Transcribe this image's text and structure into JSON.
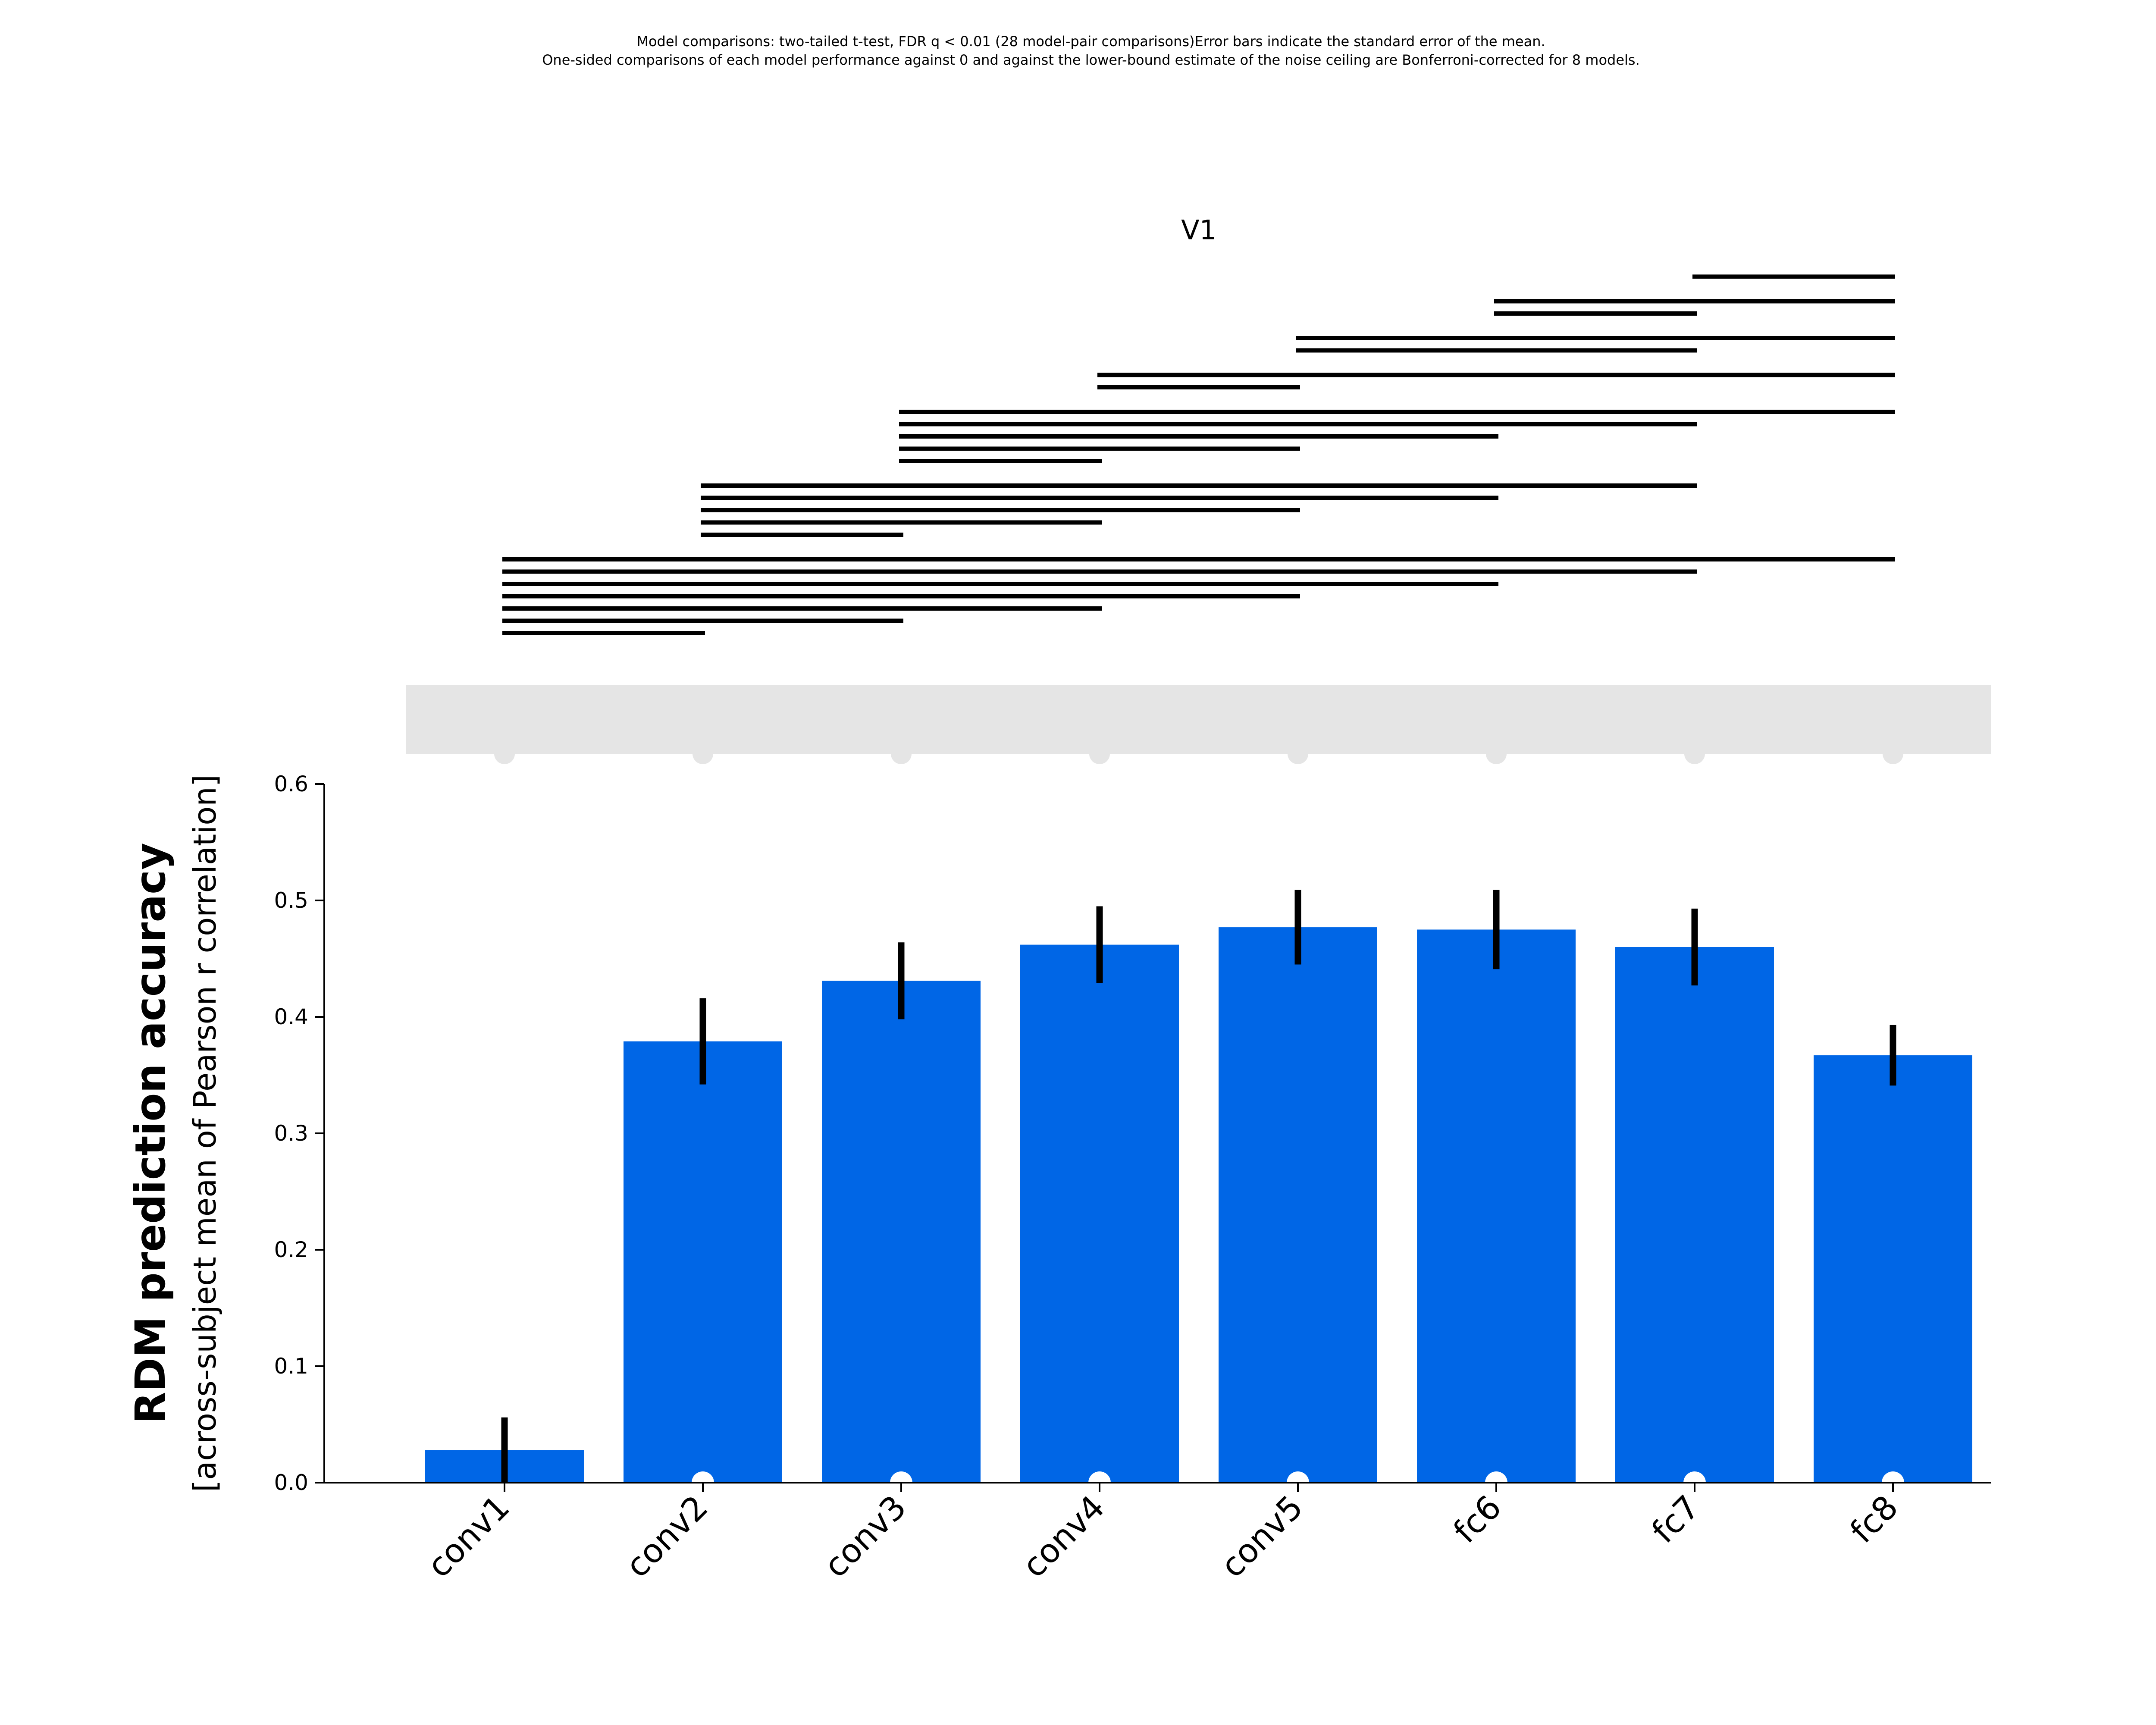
{
  "chart_data": {
    "type": "bar",
    "notes": [
      "Model comparisons: two-tailed t-test, FDR q < 0.01 (28 model-pair comparisons)Error bars indicate the standard error of the mean.",
      "One-sided comparisons of each model performance against 0 and against the lower-bound estimate of the noise ceiling are Bonferroni-corrected for 8 models."
    ],
    "title": "V1",
    "ylabel": "RDM prediction accuracy",
    "ylabel_sub": "[across-subject mean of Pearson r correlation]",
    "categories": [
      "conv1",
      "conv2",
      "conv3",
      "conv4",
      "conv5",
      "fc6",
      "fc7",
      "fc8"
    ],
    "values": [
      0.028,
      0.379,
      0.431,
      0.462,
      0.477,
      0.475,
      0.46,
      0.367
    ],
    "errors": [
      0.028,
      0.037,
      0.033,
      0.033,
      0.032,
      0.034,
      0.033,
      0.026
    ],
    "ylim": [
      0,
      0.6
    ],
    "yticks": [
      "0.0",
      "0.1",
      "0.2",
      "0.3",
      "0.4",
      "0.5",
      "0.6"
    ],
    "grid": false,
    "bar_color": "#0066e6",
    "noise_ceiling_color": "#e5e5e5",
    "significant_vs_zero": [
      false,
      true,
      true,
      true,
      true,
      true,
      true,
      true
    ],
    "significant_vs_noise_ceiling": [
      true,
      true,
      true,
      true,
      true,
      true,
      true,
      true
    ],
    "pairwise_significant": [
      [
        0,
        1
      ],
      [
        0,
        2
      ],
      [
        0,
        3
      ],
      [
        0,
        4
      ],
      [
        0,
        5
      ],
      [
        0,
        6
      ],
      [
        0,
        7
      ],
      [
        1,
        2
      ],
      [
        1,
        3
      ],
      [
        1,
        4
      ],
      [
        1,
        5
      ],
      [
        1,
        6
      ],
      [
        2,
        3
      ],
      [
        2,
        4
      ],
      [
        2,
        5
      ],
      [
        2,
        6
      ],
      [
        2,
        7
      ],
      [
        3,
        4
      ],
      [
        3,
        7
      ],
      [
        4,
        6
      ],
      [
        4,
        7
      ],
      [
        5,
        6
      ],
      [
        5,
        7
      ],
      [
        6,
        7
      ]
    ]
  }
}
